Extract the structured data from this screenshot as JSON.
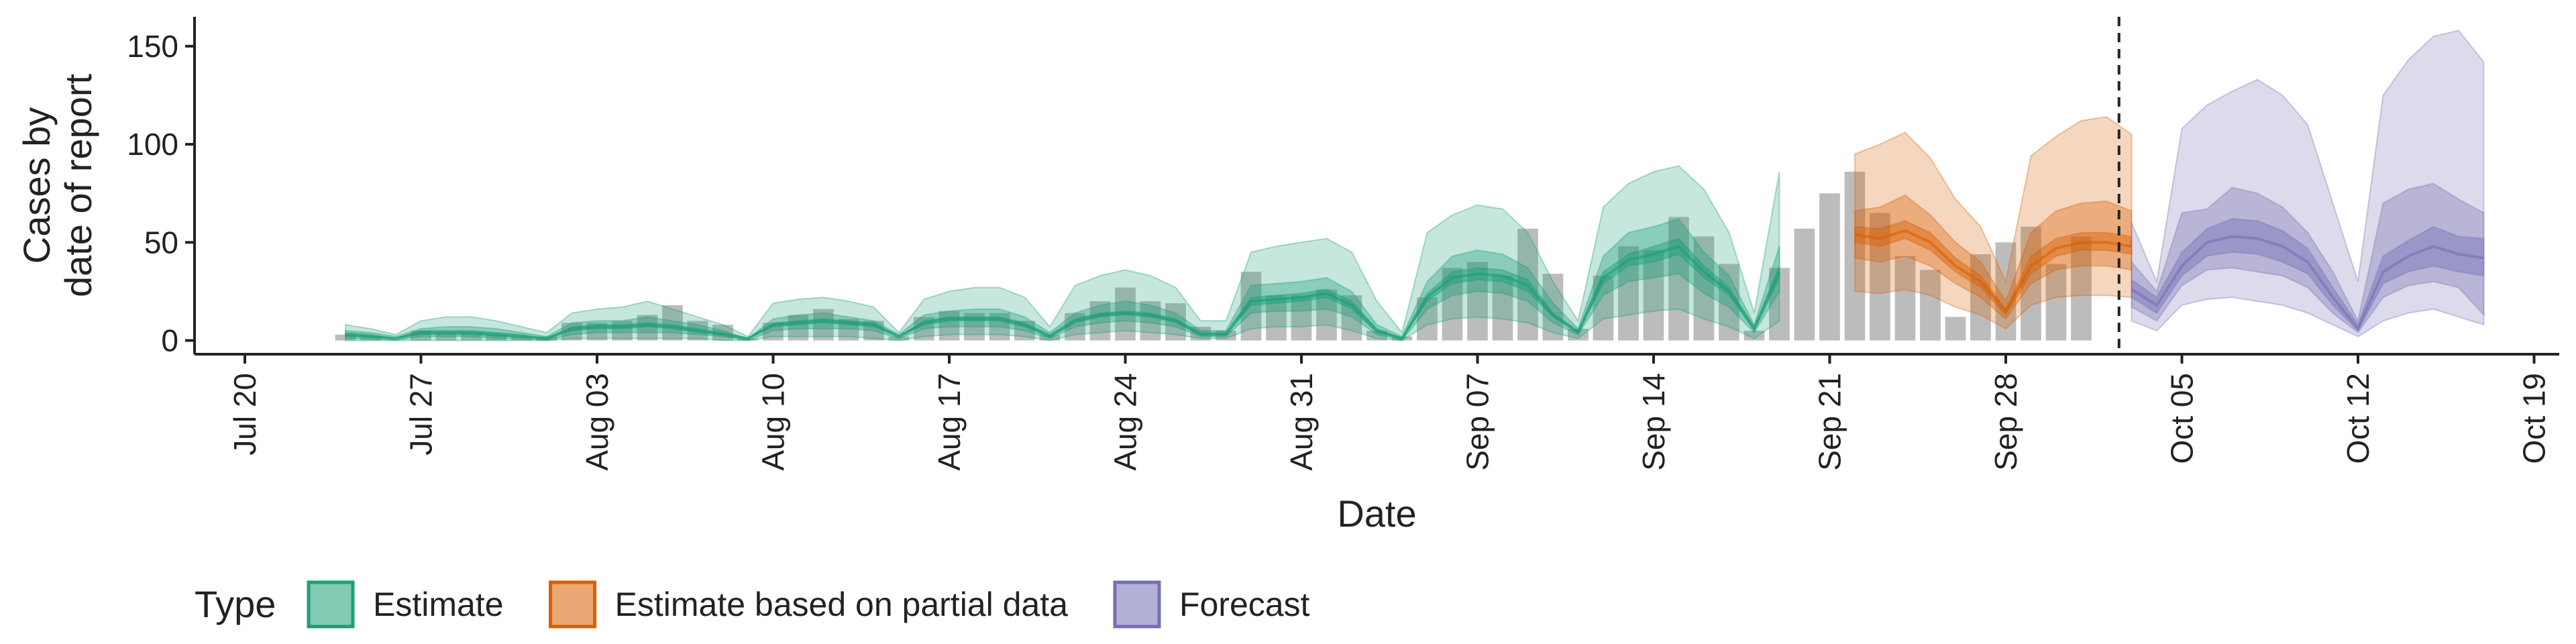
{
  "chart_data": {
    "type": "area",
    "xlabel": "Date",
    "ylabel": [
      "Cases by",
      "date of report"
    ],
    "xlim": [
      "2020-07-18",
      "2020-10-20"
    ],
    "ylim": [
      -7,
      165
    ],
    "y_ticks": [
      0,
      50,
      100,
      150
    ],
    "x_ticks": [
      {
        "date": "2020-07-20",
        "label": "Jul 20"
      },
      {
        "date": "2020-07-27",
        "label": "Jul 27"
      },
      {
        "date": "2020-08-03",
        "label": "Aug 03"
      },
      {
        "date": "2020-08-10",
        "label": "Aug 10"
      },
      {
        "date": "2020-08-17",
        "label": "Aug 17"
      },
      {
        "date": "2020-08-24",
        "label": "Aug 24"
      },
      {
        "date": "2020-08-31",
        "label": "Aug 31"
      },
      {
        "date": "2020-09-07",
        "label": "Sep 07"
      },
      {
        "date": "2020-09-14",
        "label": "Sep 14"
      },
      {
        "date": "2020-09-21",
        "label": "Sep 21"
      },
      {
        "date": "2020-09-28",
        "label": "Sep 28"
      },
      {
        "date": "2020-10-05",
        "label": "Oct 05"
      },
      {
        "date": "2020-10-12",
        "label": "Oct 12"
      },
      {
        "date": "2020-10-19",
        "label": "Oct 19"
      }
    ],
    "forecast_date": "2020-10-02",
    "reported_cases": {
      "start": "2020-07-24",
      "values": [
        3,
        2,
        0,
        5,
        4,
        4,
        3,
        2,
        2,
        9,
        9,
        10,
        13,
        18,
        10,
        8,
        1,
        9,
        13,
        16,
        11,
        10,
        2,
        12,
        15,
        14,
        14,
        10,
        3,
        14,
        20,
        27,
        20,
        19,
        7,
        5,
        35,
        23,
        23,
        26,
        23,
        5,
        2,
        22,
        37,
        40,
        33,
        57,
        34,
        6,
        33,
        48,
        46,
        63,
        53,
        39,
        5,
        37,
        57,
        75,
        86,
        65,
        43,
        36,
        12,
        44,
        50,
        58,
        39,
        53
      ]
    },
    "series": [
      {
        "name": "Estimate",
        "color": "#1b9e77",
        "start": "2020-07-24",
        "median": [
          3,
          2,
          1,
          4,
          4,
          4,
          3,
          2,
          1,
          6,
          7,
          7,
          8,
          7,
          5,
          3,
          1,
          8,
          9,
          10,
          9,
          8,
          2,
          9,
          11,
          11,
          11,
          8,
          2,
          10,
          13,
          14,
          13,
          10,
          3,
          3,
          20,
          21,
          22,
          24,
          18,
          5,
          1,
          22,
          32,
          34,
          33,
          28,
          13,
          4,
          32,
          41,
          44,
          48,
          35,
          25,
          6,
          35
        ],
        "lower90": [
          0,
          0,
          0,
          0,
          0,
          0,
          0,
          0,
          0,
          1,
          1,
          1,
          1,
          1,
          1,
          0,
          0,
          2,
          2,
          2,
          2,
          1,
          0,
          2,
          3,
          3,
          3,
          2,
          0,
          3,
          4,
          5,
          4,
          3,
          1,
          1,
          6,
          7,
          7,
          8,
          5,
          1,
          0,
          8,
          11,
          12,
          11,
          9,
          4,
          1,
          11,
          13,
          15,
          16,
          11,
          7,
          1,
          10
        ],
        "upper90": [
          8,
          6,
          3,
          10,
          12,
          12,
          10,
          7,
          4,
          14,
          16,
          17,
          20,
          16,
          12,
          8,
          2,
          19,
          21,
          22,
          20,
          17,
          4,
          21,
          25,
          27,
          27,
          22,
          7,
          28,
          33,
          36,
          33,
          27,
          10,
          10,
          45,
          48,
          50,
          52,
          45,
          20,
          4,
          55,
          64,
          69,
          67,
          55,
          30,
          10,
          68,
          80,
          86,
          89,
          77,
          55,
          14,
          86
        ],
        "lower50": [
          1,
          1,
          0,
          2,
          2,
          2,
          1,
          1,
          0,
          3,
          4,
          4,
          4,
          4,
          3,
          2,
          0,
          5,
          6,
          6,
          6,
          5,
          1,
          6,
          7,
          7,
          7,
          5,
          1,
          7,
          9,
          10,
          9,
          7,
          2,
          2,
          14,
          15,
          15,
          16,
          12,
          3,
          0,
          16,
          23,
          25,
          24,
          20,
          9,
          3,
          23,
          30,
          32,
          34,
          24,
          17,
          4,
          25
        ],
        "upper50": [
          5,
          4,
          2,
          6,
          7,
          7,
          6,
          4,
          2,
          9,
          10,
          10,
          12,
          10,
          8,
          5,
          1,
          11,
          13,
          14,
          12,
          10,
          3,
          13,
          15,
          16,
          16,
          12,
          4,
          14,
          18,
          20,
          18,
          14,
          5,
          5,
          28,
          29,
          30,
          32,
          25,
          8,
          2,
          30,
          43,
          46,
          44,
          37,
          19,
          6,
          43,
          55,
          58,
          62,
          45,
          33,
          8,
          48
        ],
        "lower20": [
          2,
          2,
          1,
          3,
          3,
          3,
          2,
          2,
          1,
          5,
          6,
          6,
          7,
          6,
          4,
          3,
          1,
          7,
          8,
          9,
          8,
          7,
          2,
          8,
          10,
          10,
          10,
          7,
          2,
          9,
          12,
          13,
          12,
          9,
          3,
          3,
          18,
          19,
          20,
          22,
          16,
          4,
          1,
          20,
          29,
          31,
          30,
          25,
          12,
          4,
          29,
          38,
          40,
          44,
          32,
          23,
          5,
          32
        ],
        "upper20": [
          4,
          3,
          1,
          5,
          5,
          5,
          4,
          3,
          1,
          7,
          8,
          8,
          9,
          8,
          6,
          4,
          1,
          9,
          10,
          11,
          10,
          9,
          2,
          10,
          12,
          12,
          12,
          9,
          3,
          11,
          14,
          15,
          14,
          11,
          4,
          4,
          22,
          23,
          24,
          26,
          20,
          6,
          1,
          24,
          35,
          37,
          36,
          31,
          14,
          5,
          35,
          44,
          48,
          52,
          38,
          27,
          7,
          38
        ]
      },
      {
        "name": "Estimate based on partial data",
        "color": "#d95f02",
        "start": "2020-09-22",
        "median": [
          54,
          52,
          56,
          50,
          38,
          30,
          15,
          38,
          47,
          50,
          50,
          48
        ],
        "lower90": [
          25,
          24,
          26,
          23,
          17,
          13,
          6,
          18,
          22,
          23,
          23,
          22
        ],
        "upper90": [
          95,
          100,
          106,
          93,
          72,
          58,
          30,
          94,
          104,
          112,
          114,
          105
        ],
        "lower50": [
          42,
          40,
          43,
          38,
          29,
          22,
          11,
          29,
          36,
          38,
          38,
          36
        ],
        "upper50": [
          66,
          68,
          74,
          64,
          50,
          40,
          20,
          55,
          66,
          70,
          71,
          66
        ],
        "lower20": [
          50,
          48,
          52,
          46,
          35,
          27,
          13,
          34,
          43,
          46,
          46,
          44
        ],
        "upper20": [
          58,
          57,
          61,
          55,
          42,
          33,
          16,
          43,
          52,
          55,
          55,
          53
        ]
      },
      {
        "name": "Forecast",
        "color": "#7570b3",
        "start": "2020-10-03",
        "median": [
          26,
          18,
          38,
          50,
          53,
          52,
          48,
          40,
          22,
          6,
          35,
          43,
          48,
          44,
          42
        ],
        "lower90": [
          10,
          5,
          18,
          21,
          22,
          20,
          18,
          14,
          8,
          2,
          10,
          14,
          16,
          12,
          8
        ],
        "upper90": [
          60,
          30,
          108,
          120,
          127,
          133,
          125,
          110,
          70,
          30,
          125,
          143,
          155,
          158,
          142
        ],
        "lower50": [
          17,
          10,
          28,
          36,
          37,
          35,
          33,
          27,
          14,
          4,
          22,
          28,
          30,
          27,
          13
        ],
        "upper50": [
          40,
          25,
          65,
          67,
          78,
          75,
          68,
          55,
          35,
          10,
          70,
          77,
          80,
          72,
          65
        ],
        "lower20": [
          22,
          14,
          33,
          43,
          45,
          44,
          40,
          34,
          18,
          5,
          29,
          35,
          38,
          35,
          33
        ],
        "upper20": [
          31,
          22,
          45,
          57,
          62,
          61,
          56,
          47,
          27,
          8,
          43,
          51,
          58,
          53,
          52
        ]
      }
    ],
    "legend": {
      "title": "Type",
      "position": "bottom",
      "items": [
        "Estimate",
        "Estimate based on partial data",
        "Forecast"
      ]
    },
    "grid": false
  }
}
